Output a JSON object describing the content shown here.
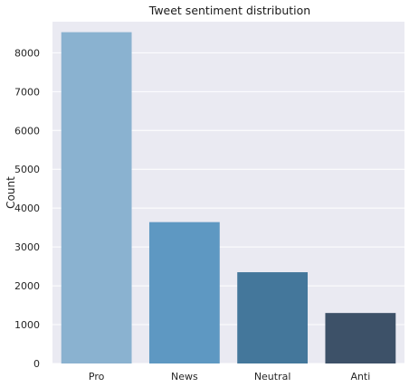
{
  "chart_data": {
    "type": "bar",
    "title": "Tweet sentiment distribution",
    "xlabel": "",
    "ylabel": "Count",
    "categories": [
      "Pro",
      "News",
      "Neutral",
      "Anti"
    ],
    "values": [
      8530,
      3640,
      2350,
      1300
    ],
    "ylim": [
      0,
      8800
    ],
    "yticks": [
      0,
      1000,
      2000,
      3000,
      4000,
      5000,
      6000,
      7000,
      8000
    ],
    "grid": true,
    "legend": "none",
    "colors": [
      "#8ab2d0",
      "#5e98c2",
      "#44779b",
      "#3d5168"
    ],
    "background": "#eaeaf2"
  }
}
